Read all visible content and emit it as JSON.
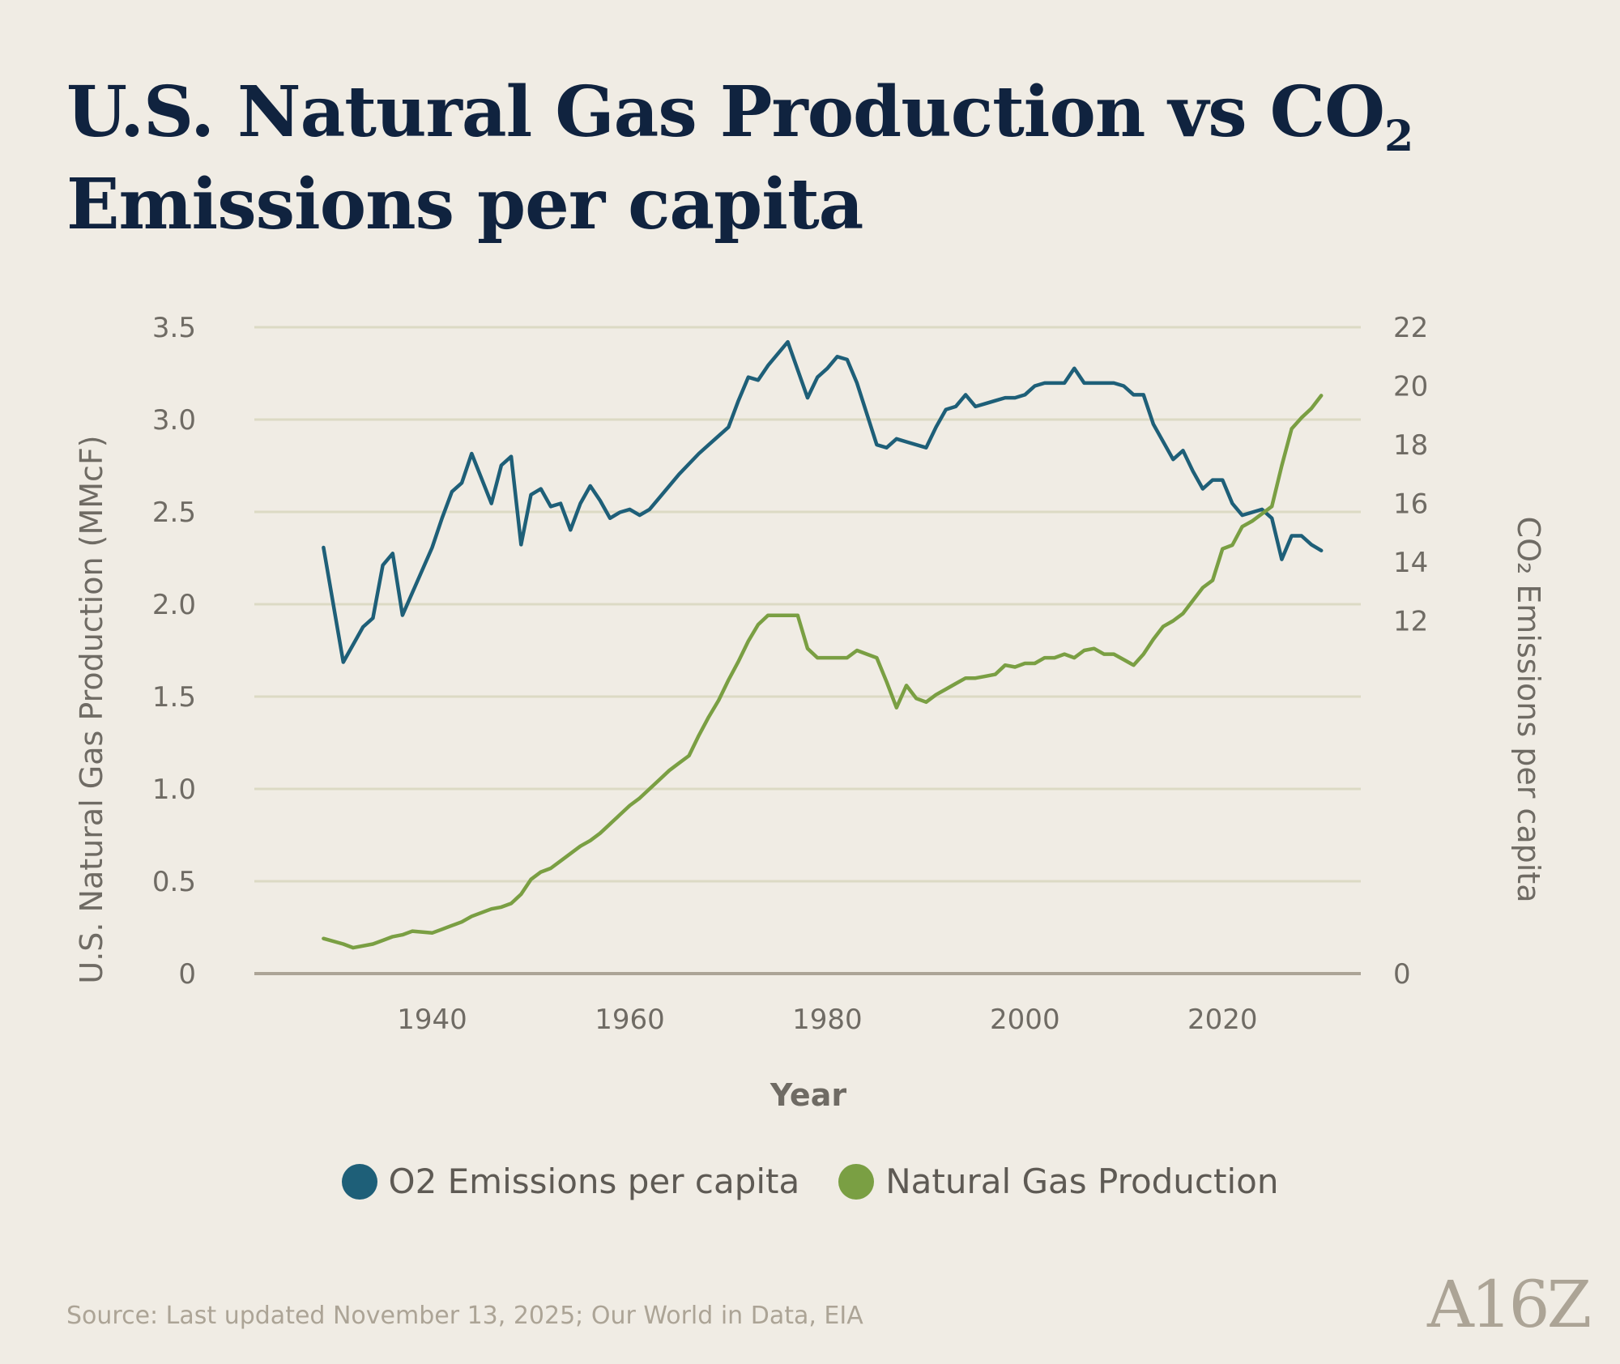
{
  "header": {
    "title_main": "U.S. Natural Gas Production vs CO",
    "title_sub": "2",
    "title_rest": " Emissions per capita"
  },
  "colors": {
    "background": "#f0ece4",
    "co2_series": "#1e5f78",
    "gas_series": "#7a9f43",
    "grid": "#dcdac4",
    "baseline": "#aca496"
  },
  "chart_data": {
    "type": "line",
    "xlabel": "Year",
    "ylabel_left": "U.S. Natural Gas Production (MMcF)",
    "ylabel_right": "CO₂ Emissions per capita",
    "xlim": [
      1922,
      2034
    ],
    "x_ticks": [
      "1940",
      "1960",
      "1980",
      "2000",
      "2020"
    ],
    "y_left_lim": [
      0,
      3.5
    ],
    "y_left_ticks": [
      "0",
      "0.5",
      "1.0",
      "1.5",
      "2.0",
      "2.5",
      "3.0",
      "3.5"
    ],
    "y_right_lim": [
      0,
      22
    ],
    "y_right_ticks": [
      "0",
      "12",
      "14",
      "16",
      "18",
      "20",
      "22"
    ],
    "grid": true,
    "legend_position": "bottom-center",
    "series": [
      {
        "name": "O2 Emissions per capita",
        "axis": "right",
        "x": [
          1929,
          1931,
          1933,
          1934,
          1935,
          1936,
          1937,
          1940,
          1941,
          1942,
          1943,
          1944,
          1946,
          1947,
          1948,
          1949,
          1950,
          1951,
          1952,
          1953,
          1954,
          1955,
          1956,
          1957,
          1958,
          1959,
          1960,
          1961,
          1962,
          1963,
          1965,
          1967,
          1968,
          1970,
          1971,
          1972,
          1973,
          1974,
          1976,
          1978,
          1979,
          1980,
          1981,
          1982,
          1983,
          1985,
          1986,
          1987,
          1988,
          1990,
          1991,
          1992,
          1993,
          1994,
          1995,
          1996,
          1997,
          1998,
          1999,
          2000,
          2001,
          2002,
          2003,
          2004,
          2005,
          2006,
          2007,
          2009,
          2010,
          2011,
          2012,
          2013,
          2015,
          2016,
          2017,
          2018,
          2019,
          2020,
          2021,
          2022,
          2024,
          2025,
          2026,
          2027,
          2028,
          2029,
          2030
        ],
        "y": [
          14.5,
          10.6,
          11.8,
          12.1,
          13.9,
          14.3,
          12.2,
          14.5,
          15.5,
          16.4,
          16.7,
          17.7,
          16.0,
          17.3,
          17.6,
          14.6,
          16.3,
          16.5,
          15.9,
          16.0,
          15.1,
          16.0,
          16.6,
          16.1,
          15.5,
          15.7,
          15.8,
          15.6,
          15.8,
          16.2,
          17.0,
          17.7,
          18.0,
          18.6,
          19.5,
          20.3,
          20.2,
          20.7,
          21.5,
          19.6,
          20.3,
          20.6,
          21.0,
          20.9,
          20.1,
          18.0,
          17.9,
          18.2,
          18.1,
          17.9,
          18.6,
          19.2,
          19.3,
          19.7,
          19.3,
          19.4,
          19.5,
          19.6,
          19.6,
          19.7,
          20.0,
          20.1,
          20.1,
          20.1,
          20.6,
          20.1,
          20.1,
          20.1,
          20.0,
          19.7,
          19.7,
          18.7,
          17.5,
          17.8,
          17.1,
          16.5,
          16.8,
          16.8,
          16.0,
          15.6,
          15.8,
          15.5,
          14.1,
          14.9,
          14.9,
          14.6,
          14.4
        ]
      },
      {
        "name": "Natural Gas Production",
        "axis": "left",
        "x": [
          1929,
          1931,
          1932,
          1934,
          1935,
          1936,
          1937,
          1938,
          1940,
          1941,
          1942,
          1943,
          1944,
          1946,
          1947,
          1948,
          1949,
          1950,
          1951,
          1952,
          1953,
          1954,
          1955,
          1956,
          1957,
          1958,
          1959,
          1960,
          1961,
          1962,
          1963,
          1964,
          1965,
          1966,
          1967,
          1968,
          1969,
          1970,
          1971,
          1972,
          1973,
          1974,
          1975,
          1976,
          1977,
          1978,
          1979,
          1980,
          1981,
          1982,
          1983,
          1984,
          1985,
          1986,
          1987,
          1988,
          1989,
          1990,
          1991,
          1992,
          1993,
          1994,
          1995,
          1996,
          1997,
          1998,
          1999,
          2000,
          2001,
          2002,
          2003,
          2004,
          2005,
          2006,
          2007,
          2008,
          2009,
          2010,
          2011,
          2012,
          2013,
          2014,
          2015,
          2016,
          2017,
          2018,
          2019,
          2020,
          2021,
          2022,
          2023,
          2024,
          2025,
          2026,
          2027,
          2028,
          2029,
          2030
        ],
        "y": [
          0.19,
          0.16,
          0.14,
          0.16,
          0.18,
          0.2,
          0.21,
          0.23,
          0.22,
          0.24,
          0.26,
          0.28,
          0.31,
          0.35,
          0.36,
          0.38,
          0.43,
          0.51,
          0.55,
          0.57,
          0.61,
          0.65,
          0.69,
          0.72,
          0.76,
          0.81,
          0.86,
          0.91,
          0.95,
          1.0,
          1.05,
          1.1,
          1.14,
          1.18,
          1.29,
          1.39,
          1.48,
          1.59,
          1.69,
          1.8,
          1.89,
          1.94,
          1.94,
          1.94,
          1.94,
          1.76,
          1.71,
          1.71,
          1.71,
          1.71,
          1.75,
          1.73,
          1.71,
          1.58,
          1.44,
          1.56,
          1.49,
          1.47,
          1.51,
          1.54,
          1.57,
          1.6,
          1.6,
          1.61,
          1.62,
          1.67,
          1.66,
          1.68,
          1.68,
          1.71,
          1.71,
          1.73,
          1.71,
          1.75,
          1.76,
          1.73,
          1.73,
          1.7,
          1.67,
          1.73,
          1.81,
          1.88,
          1.91,
          1.95,
          2.02,
          2.09,
          2.13,
          2.3,
          2.32,
          2.42,
          2.45,
          2.49,
          2.53,
          2.75,
          2.95,
          3.01,
          3.06,
          3.13
        ]
      }
    ]
  },
  "legend": {
    "items": [
      {
        "label": "O2 Emissions per capita",
        "color": "#1e5f78"
      },
      {
        "label": "Natural Gas Production",
        "color": "#7a9f43"
      }
    ]
  },
  "footer": {
    "source": "Source: Last updated November 13, 2025; Our World in Data, EIA",
    "logo": "A16Z"
  }
}
